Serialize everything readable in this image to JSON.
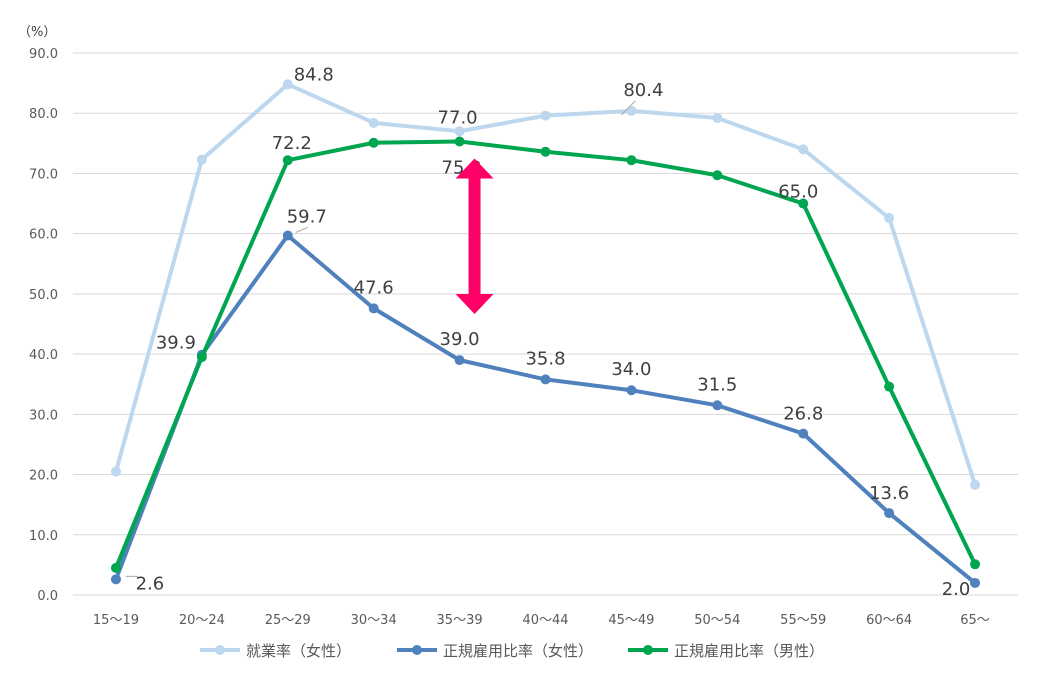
{
  "chart_data": {
    "type": "line",
    "unit_label": "（%）",
    "categories": [
      "15〜19",
      "20〜24",
      "25〜29",
      "30〜34",
      "35〜39",
      "40〜44",
      "45〜49",
      "50〜54",
      "55〜59",
      "60〜64",
      "65〜"
    ],
    "ylim": [
      0,
      90
    ],
    "yticks": [
      "0.0",
      "10.0",
      "20.0",
      "30.0",
      "40.0",
      "50.0",
      "60.0",
      "70.0",
      "80.0",
      "90.0"
    ],
    "grid": true,
    "legend_position": "bottom",
    "series": [
      {
        "name": "就業率（女性）",
        "color": "#BDD7EE",
        "values": [
          20.5,
          72.3,
          84.8,
          78.4,
          77.0,
          79.6,
          80.4,
          79.2,
          74.0,
          62.6,
          18.3
        ],
        "labels": [
          "",
          "",
          "84.8",
          "",
          "77.0",
          "",
          "80.4",
          "",
          "",
          "",
          ""
        ]
      },
      {
        "name": "正規雇用比率（女性）",
        "color": "#4F81BD",
        "values": [
          2.6,
          39.9,
          59.7,
          47.6,
          39.0,
          35.8,
          34.0,
          31.5,
          26.8,
          13.6,
          2.0
        ],
        "labels": [
          "2.6",
          "39.9",
          "59.7",
          "47.6",
          "39.0",
          "35.8",
          "34.0",
          "31.5",
          "26.8",
          "13.6",
          "2.0"
        ]
      },
      {
        "name": "正規雇用比率（男性）",
        "color": "#00A550",
        "values": [
          4.5,
          39.5,
          72.2,
          75.1,
          75.3,
          73.6,
          72.2,
          69.7,
          65.0,
          34.6,
          5.1
        ],
        "labels": [
          "",
          "",
          "72.2",
          "",
          "75.3",
          "",
          "",
          "",
          "65.0",
          "",
          ""
        ]
      }
    ],
    "annotation": {
      "type": "double-arrow",
      "color": "#FF0066",
      "from_value": 75.3,
      "to_value": 47.5
    }
  }
}
